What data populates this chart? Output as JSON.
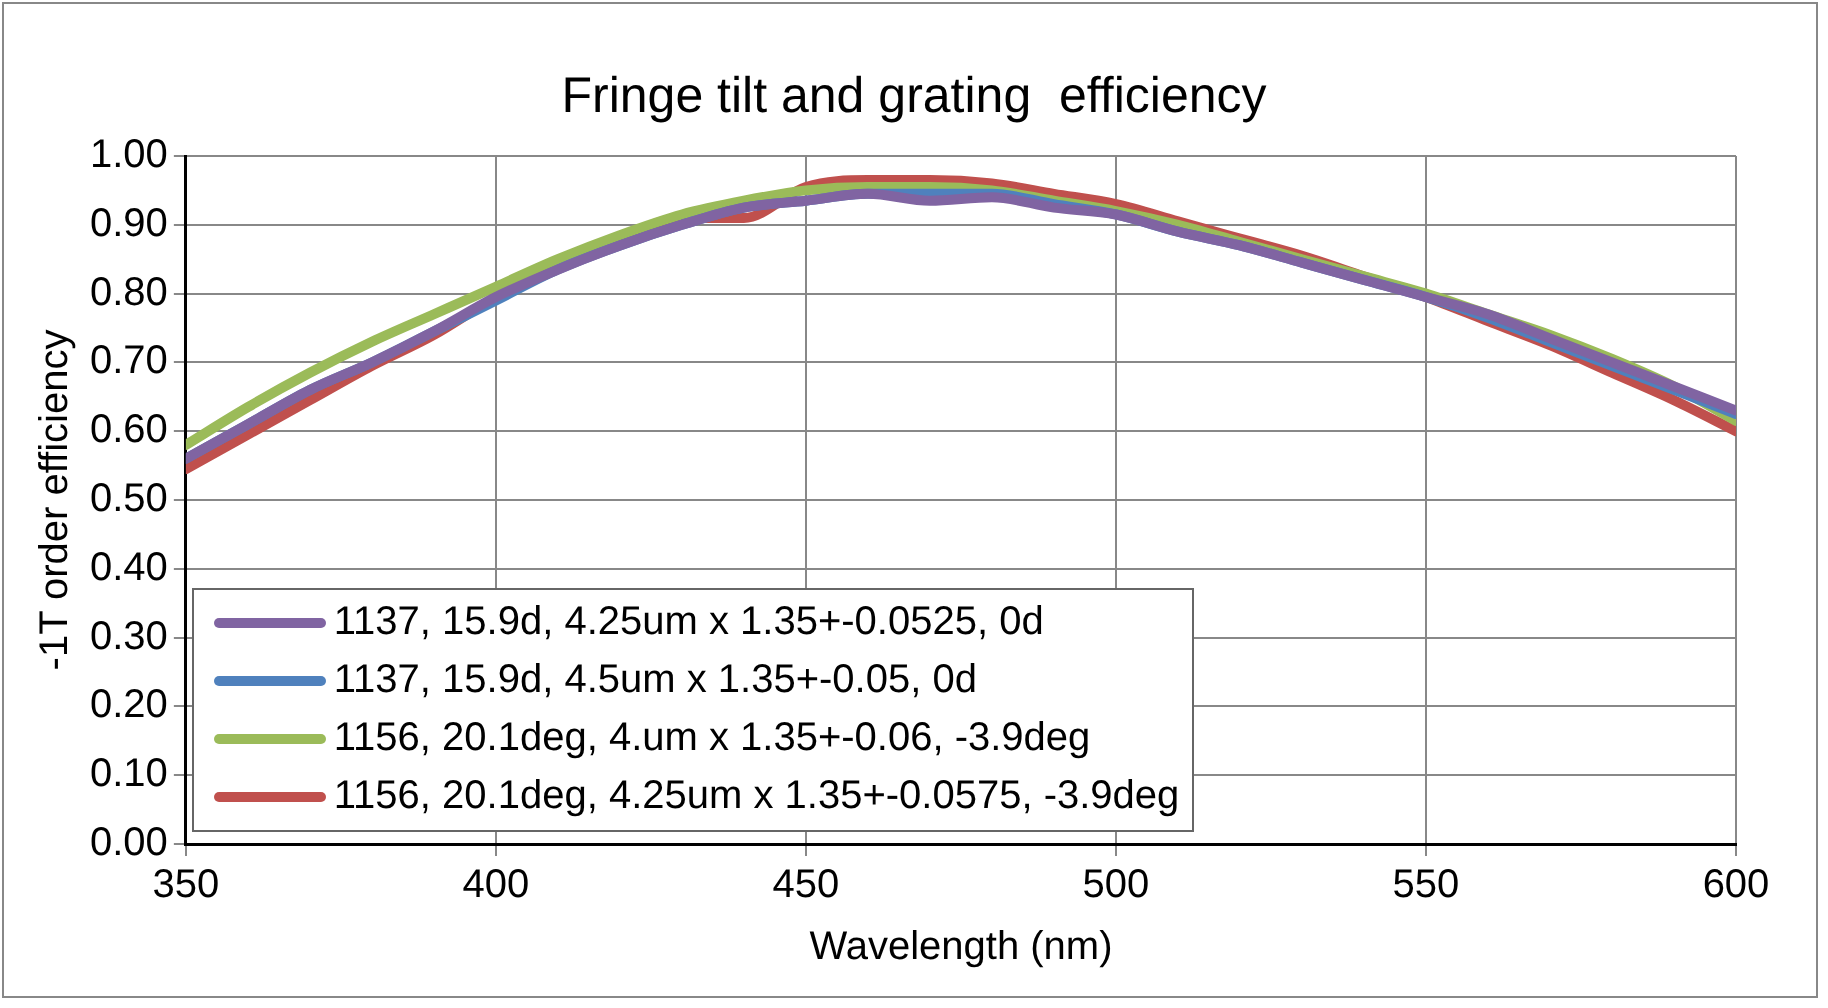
{
  "chart_data": {
    "type": "line",
    "title": "Fringe tilt and grating  efficiency",
    "xlabel": "Wavelength (nm)",
    "ylabel": "-1T order efficiency",
    "x": [
      350,
      360,
      370,
      380,
      390,
      400,
      410,
      420,
      430,
      440,
      450,
      460,
      470,
      480,
      490,
      500,
      510,
      520,
      530,
      540,
      550,
      560,
      570,
      580,
      590,
      600
    ],
    "series": [
      {
        "name": "1137, 15.9d, 4.25um x 1.35+-0.0525, 0d",
        "color": "#8064a2",
        "values": [
          0.56,
          0.61,
          0.66,
          0.7,
          0.745,
          0.795,
          0.835,
          0.87,
          0.9,
          0.925,
          0.935,
          0.945,
          0.935,
          0.94,
          0.925,
          0.915,
          0.89,
          0.87,
          0.845,
          0.82,
          0.795,
          0.77,
          0.735,
          0.7,
          0.665,
          0.63
        ]
      },
      {
        "name": "1137, 15.9d, 4.5um x 1.35+-0.05, 0d",
        "color": "#4f81bd",
        "values": [
          0.56,
          0.61,
          0.66,
          0.7,
          0.745,
          0.79,
          0.835,
          0.87,
          0.9,
          0.925,
          0.935,
          0.945,
          0.945,
          0.945,
          0.93,
          0.915,
          0.89,
          0.87,
          0.845,
          0.82,
          0.795,
          0.765,
          0.73,
          0.695,
          0.66,
          0.625
        ]
      },
      {
        "name": "1156, 20.1deg, 4.um x 1.35+-0.06, -3.9deg",
        "color": "#9bbb59",
        "values": [
          0.58,
          0.635,
          0.685,
          0.73,
          0.77,
          0.81,
          0.85,
          0.885,
          0.915,
          0.935,
          0.95,
          0.955,
          0.955,
          0.95,
          0.935,
          0.92,
          0.9,
          0.875,
          0.85,
          0.825,
          0.8,
          0.77,
          0.74,
          0.705,
          0.665,
          0.615
        ]
      },
      {
        "name": "1156, 20.1deg, 4.25um x 1.35+-0.0575, -3.9deg",
        "color": "#c0504d",
        "values": [
          0.545,
          0.595,
          0.645,
          0.695,
          0.74,
          0.795,
          0.84,
          0.88,
          0.91,
          0.91,
          0.955,
          0.965,
          0.965,
          0.96,
          0.945,
          0.93,
          0.905,
          0.88,
          0.855,
          0.825,
          0.795,
          0.76,
          0.725,
          0.685,
          0.645,
          0.6
        ]
      }
    ],
    "xlim": [
      350,
      600
    ],
    "xticks": [
      350,
      400,
      450,
      500,
      550,
      600
    ],
    "ylim": [
      0,
      1
    ],
    "yticks": [
      {
        "value": 0,
        "label": "0.00"
      },
      {
        "value": 0.1,
        "label": "0.10"
      },
      {
        "value": 0.2,
        "label": "0.20"
      },
      {
        "value": 0.3,
        "label": "0.30"
      },
      {
        "value": 0.4,
        "label": "0.40"
      },
      {
        "value": 0.5,
        "label": "0.50"
      },
      {
        "value": 0.6,
        "label": "0.60"
      },
      {
        "value": 0.7,
        "label": "0.70"
      },
      {
        "value": 0.8,
        "label": "0.80"
      },
      {
        "value": 0.9,
        "label": "0.90"
      },
      {
        "value": 1,
        "label": "1.00"
      }
    ],
    "grid": true,
    "legend": "bottom left",
    "marker": "none",
    "line_style": "solid"
  }
}
